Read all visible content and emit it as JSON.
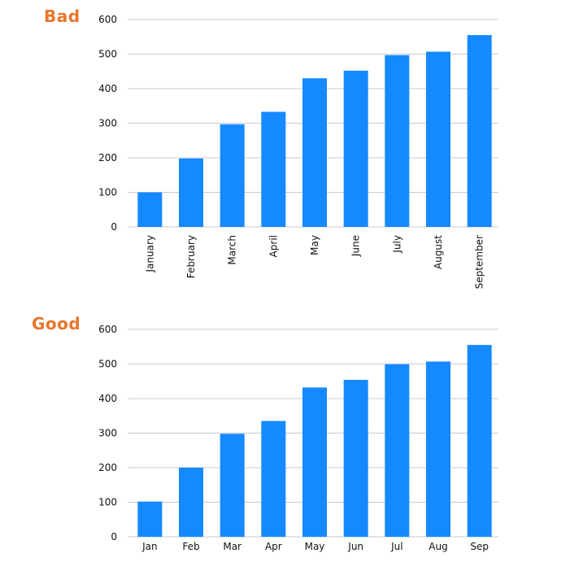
{
  "bad": {
    "label": "Bad",
    "chart_data": {
      "type": "bar",
      "categories": [
        "January",
        "February",
        "March",
        "April",
        "May",
        "June",
        "July",
        "August",
        "September"
      ],
      "values": [
        100,
        198,
        297,
        333,
        430,
        452,
        497,
        507,
        555
      ],
      "yticks": [
        0,
        100,
        200,
        300,
        400,
        500,
        600
      ],
      "ylim": [
        0,
        600
      ],
      "label_rotation": "vertical",
      "bar_color": "#1589ff",
      "grid": true,
      "title": "",
      "xlabel": "",
      "ylabel": ""
    }
  },
  "good": {
    "label": "Good",
    "chart_data": {
      "type": "bar",
      "categories": [
        "Jan",
        "Feb",
        "Mar",
        "Apr",
        "May",
        "Jun",
        "Jul",
        "Aug",
        "Sep"
      ],
      "values": [
        102,
        200,
        298,
        335,
        432,
        454,
        499,
        507,
        555
      ],
      "yticks": [
        0,
        100,
        200,
        300,
        400,
        500,
        600
      ],
      "ylim": [
        0,
        600
      ],
      "label_rotation": "horizontal",
      "bar_color": "#1589ff",
      "grid": true,
      "title": "",
      "xlabel": "",
      "ylabel": ""
    }
  }
}
